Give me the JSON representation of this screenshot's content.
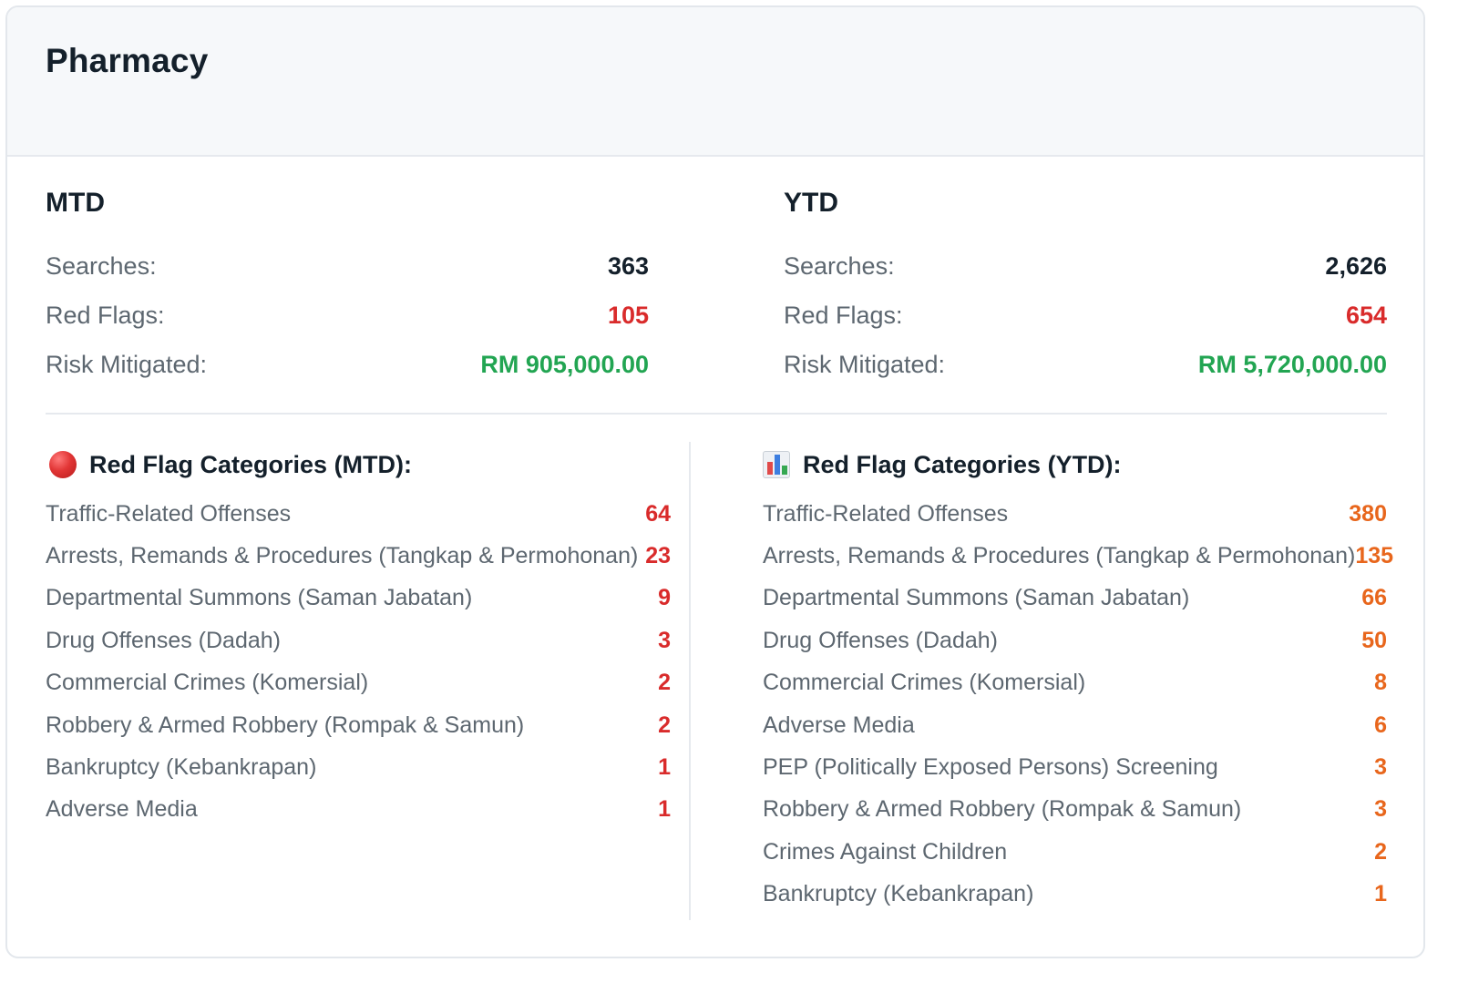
{
  "card": {
    "title": "Pharmacy"
  },
  "mtd": {
    "heading": "MTD",
    "searches_label": "Searches:",
    "searches_value": "363",
    "red_flags_label": "Red Flags:",
    "red_flags_value": "105",
    "risk_label": "Risk Mitigated:",
    "risk_value": "RM 905,000.00"
  },
  "ytd": {
    "heading": "YTD",
    "searches_label": "Searches:",
    "searches_value": "2,626",
    "red_flags_label": "Red Flags:",
    "red_flags_value": "654",
    "risk_label": "Risk Mitigated:",
    "risk_value": "RM 5,720,000.00"
  },
  "colors": {
    "red": "#d92b2b",
    "green": "#22a552",
    "orange": "#e8661c"
  },
  "mtd_categories": {
    "icon": "red-circle-icon",
    "heading": "Red Flag Categories (MTD):",
    "items": [
      {
        "label": "Traffic-Related Offenses",
        "count": "64"
      },
      {
        "label": "Arrests, Remands & Procedures (Tangkap & Permohonan)",
        "count": "23"
      },
      {
        "label": "Departmental Summons (Saman Jabatan)",
        "count": "9"
      },
      {
        "label": "Drug Offenses (Dadah)",
        "count": "3"
      },
      {
        "label": "Commercial Crimes (Komersial)",
        "count": "2"
      },
      {
        "label": "Robbery & Armed Robbery (Rompak & Samun)",
        "count": "2"
      },
      {
        "label": "Bankruptcy (Kebankrapan)",
        "count": "1"
      },
      {
        "label": "Adverse Media",
        "count": "1"
      }
    ]
  },
  "ytd_categories": {
    "icon": "bar-chart-icon",
    "heading": "Red Flag Categories (YTD):",
    "items": [
      {
        "label": "Traffic-Related Offenses",
        "count": "380"
      },
      {
        "label": "Arrests, Remands & Procedures (Tangkap & Permohonan)",
        "count": "135"
      },
      {
        "label": "Departmental Summons (Saman Jabatan)",
        "count": "66"
      },
      {
        "label": "Drug Offenses (Dadah)",
        "count": "50"
      },
      {
        "label": "Commercial Crimes (Komersial)",
        "count": "8"
      },
      {
        "label": "Adverse Media",
        "count": "6"
      },
      {
        "label": "PEP (Politically Exposed Persons) Screening",
        "count": "3"
      },
      {
        "label": "Robbery & Armed Robbery (Rompak & Samun)",
        "count": "3"
      },
      {
        "label": "Crimes Against Children",
        "count": "2"
      },
      {
        "label": "Bankruptcy (Kebankrapan)",
        "count": "1"
      }
    ]
  }
}
